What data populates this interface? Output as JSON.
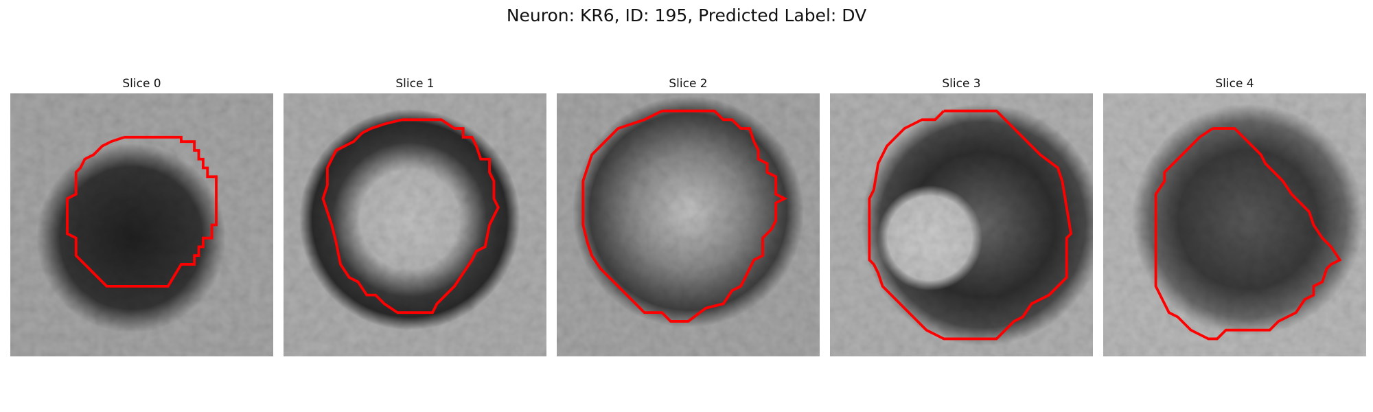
{
  "figure": {
    "suptitle": "Neuron: KR6, ID: 195, Predicted Label: DV"
  },
  "panels": [
    {
      "title": "Slice 0"
    },
    {
      "title": "Slice 1"
    },
    {
      "title": "Slice 2"
    },
    {
      "title": "Slice 3"
    },
    {
      "title": "Slice 4"
    }
  ],
  "colors": {
    "contour": "#ff0000",
    "background": "#ffffff"
  }
}
